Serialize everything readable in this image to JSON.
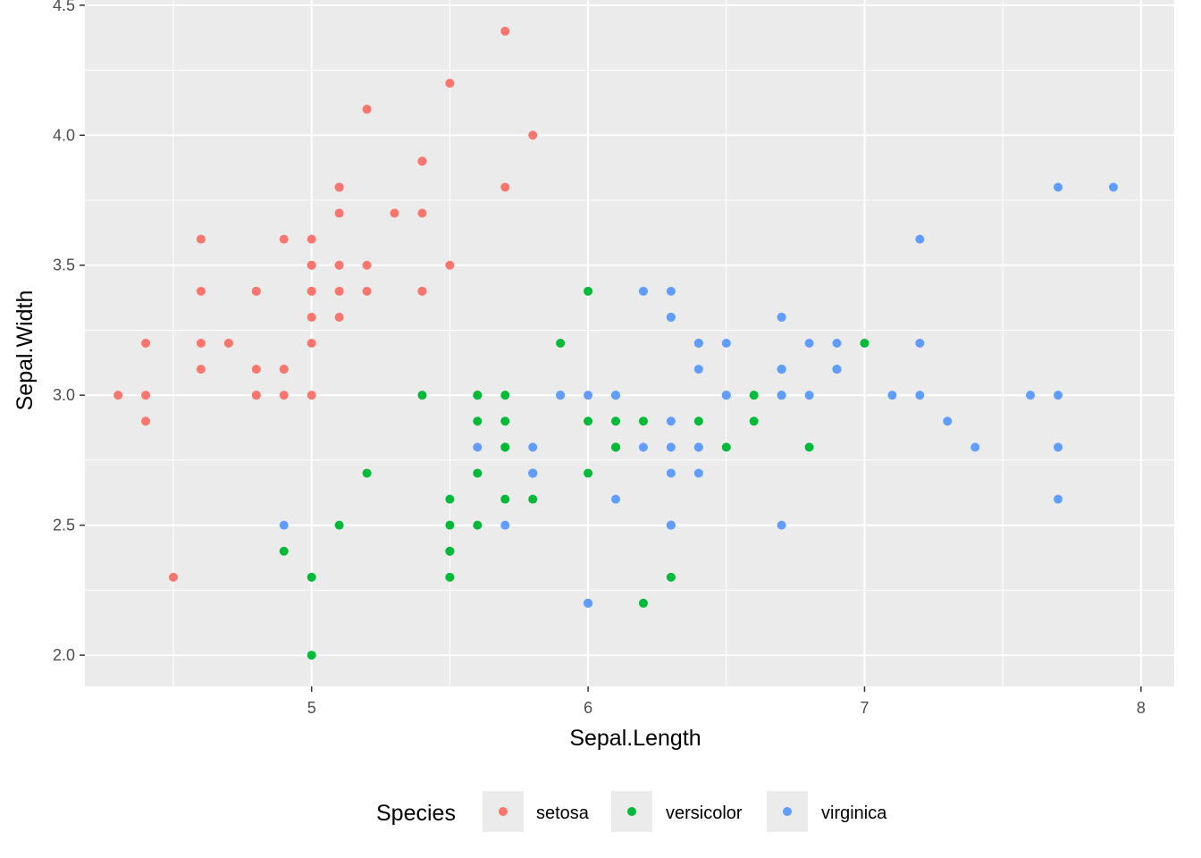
{
  "chart_data": {
    "type": "scatter",
    "xlabel": "Sepal.Length",
    "ylabel": "Sepal.Width",
    "xlim": [
      4.18,
      8.12
    ],
    "ylim": [
      1.88,
      4.52
    ],
    "x_ticks": [
      5,
      6,
      7,
      8
    ],
    "x_tick_labels": [
      "5",
      "6",
      "7",
      "8"
    ],
    "y_ticks": [
      2.0,
      2.5,
      3.0,
      3.5,
      4.0,
      4.5
    ],
    "y_tick_labels": [
      "2.0",
      "2.5",
      "3.0",
      "3.5",
      "4.0",
      "4.5"
    ],
    "grid": true,
    "legend": {
      "title": "Species",
      "position": "bottom",
      "entries": [
        "setosa",
        "versicolor",
        "virginica"
      ]
    },
    "series": [
      {
        "name": "setosa",
        "color": "#F8766D",
        "points": [
          [
            5.1,
            3.5
          ],
          [
            4.9,
            3.0
          ],
          [
            4.7,
            3.2
          ],
          [
            4.6,
            3.1
          ],
          [
            5.0,
            3.6
          ],
          [
            5.4,
            3.9
          ],
          [
            4.6,
            3.4
          ],
          [
            5.0,
            3.4
          ],
          [
            4.4,
            2.9
          ],
          [
            4.9,
            3.1
          ],
          [
            5.4,
            3.7
          ],
          [
            4.8,
            3.4
          ],
          [
            4.8,
            3.0
          ],
          [
            4.3,
            3.0
          ],
          [
            5.8,
            4.0
          ],
          [
            5.7,
            4.4
          ],
          [
            5.4,
            3.9
          ],
          [
            5.1,
            3.5
          ],
          [
            5.7,
            3.8
          ],
          [
            5.1,
            3.8
          ],
          [
            5.4,
            3.4
          ],
          [
            5.1,
            3.7
          ],
          [
            4.6,
            3.6
          ],
          [
            5.1,
            3.3
          ],
          [
            4.8,
            3.4
          ],
          [
            5.0,
            3.0
          ],
          [
            5.0,
            3.4
          ],
          [
            5.2,
            3.5
          ],
          [
            5.2,
            3.4
          ],
          [
            4.7,
            3.2
          ],
          [
            4.8,
            3.1
          ],
          [
            5.4,
            3.4
          ],
          [
            5.2,
            4.1
          ],
          [
            5.5,
            4.2
          ],
          [
            4.9,
            3.1
          ],
          [
            5.0,
            3.2
          ],
          [
            5.5,
            3.5
          ],
          [
            4.9,
            3.6
          ],
          [
            4.4,
            3.0
          ],
          [
            5.1,
            3.4
          ],
          [
            5.0,
            3.5
          ],
          [
            4.5,
            2.3
          ],
          [
            4.4,
            3.2
          ],
          [
            5.0,
            3.5
          ],
          [
            5.1,
            3.8
          ],
          [
            4.8,
            3.0
          ],
          [
            5.1,
            3.8
          ],
          [
            4.6,
            3.2
          ],
          [
            5.3,
            3.7
          ],
          [
            5.0,
            3.3
          ]
        ]
      },
      {
        "name": "versicolor",
        "color": "#00BA38",
        "points": [
          [
            7.0,
            3.2
          ],
          [
            6.4,
            3.2
          ],
          [
            6.9,
            3.1
          ],
          [
            5.5,
            2.3
          ],
          [
            6.5,
            2.8
          ],
          [
            5.7,
            2.8
          ],
          [
            6.3,
            3.3
          ],
          [
            4.9,
            2.4
          ],
          [
            6.6,
            2.9
          ],
          [
            5.2,
            2.7
          ],
          [
            5.0,
            2.0
          ],
          [
            5.9,
            3.0
          ],
          [
            6.0,
            2.2
          ],
          [
            6.1,
            2.9
          ],
          [
            5.6,
            2.9
          ],
          [
            6.7,
            3.1
          ],
          [
            5.6,
            3.0
          ],
          [
            5.8,
            2.7
          ],
          [
            6.2,
            2.2
          ],
          [
            5.6,
            2.5
          ],
          [
            5.9,
            3.2
          ],
          [
            6.1,
            2.8
          ],
          [
            6.3,
            2.5
          ],
          [
            6.1,
            2.8
          ],
          [
            6.4,
            2.9
          ],
          [
            6.6,
            3.0
          ],
          [
            6.8,
            2.8
          ],
          [
            6.7,
            3.0
          ],
          [
            6.0,
            2.9
          ],
          [
            5.7,
            2.6
          ],
          [
            5.5,
            2.4
          ],
          [
            5.5,
            2.4
          ],
          [
            5.8,
            2.7
          ],
          [
            6.0,
            2.7
          ],
          [
            5.4,
            3.0
          ],
          [
            6.0,
            3.4
          ],
          [
            6.7,
            3.1
          ],
          [
            6.3,
            2.3
          ],
          [
            5.6,
            3.0
          ],
          [
            5.5,
            2.5
          ],
          [
            5.5,
            2.6
          ],
          [
            6.1,
            3.0
          ],
          [
            5.8,
            2.6
          ],
          [
            5.0,
            2.3
          ],
          [
            5.6,
            2.7
          ],
          [
            5.7,
            3.0
          ],
          [
            5.7,
            2.9
          ],
          [
            6.2,
            2.9
          ],
          [
            5.1,
            2.5
          ],
          [
            5.7,
            2.8
          ]
        ]
      },
      {
        "name": "virginica",
        "color": "#619CFF",
        "points": [
          [
            6.3,
            3.3
          ],
          [
            5.8,
            2.7
          ],
          [
            7.1,
            3.0
          ],
          [
            6.3,
            2.9
          ],
          [
            6.5,
            3.0
          ],
          [
            7.6,
            3.0
          ],
          [
            4.9,
            2.5
          ],
          [
            7.3,
            2.9
          ],
          [
            6.7,
            2.5
          ],
          [
            7.2,
            3.6
          ],
          [
            6.5,
            3.2
          ],
          [
            6.4,
            2.7
          ],
          [
            6.8,
            3.0
          ],
          [
            5.7,
            2.5
          ],
          [
            5.8,
            2.8
          ],
          [
            6.4,
            3.2
          ],
          [
            6.5,
            3.0
          ],
          [
            7.7,
            3.8
          ],
          [
            7.7,
            2.6
          ],
          [
            6.0,
            2.2
          ],
          [
            6.9,
            3.2
          ],
          [
            5.6,
            2.8
          ],
          [
            7.7,
            2.8
          ],
          [
            6.3,
            2.7
          ],
          [
            6.7,
            3.3
          ],
          [
            7.2,
            3.2
          ],
          [
            6.2,
            2.8
          ],
          [
            6.1,
            3.0
          ],
          [
            6.4,
            2.8
          ],
          [
            7.2,
            3.0
          ],
          [
            7.4,
            2.8
          ],
          [
            7.9,
            3.8
          ],
          [
            6.4,
            2.8
          ],
          [
            6.3,
            2.8
          ],
          [
            6.1,
            2.6
          ],
          [
            7.7,
            3.0
          ],
          [
            6.3,
            3.4
          ],
          [
            6.4,
            3.1
          ],
          [
            6.0,
            3.0
          ],
          [
            6.9,
            3.1
          ],
          [
            6.7,
            3.1
          ],
          [
            6.9,
            3.1
          ],
          [
            5.8,
            2.7
          ],
          [
            6.8,
            3.2
          ],
          [
            6.7,
            3.3
          ],
          [
            6.7,
            3.0
          ],
          [
            6.3,
            2.5
          ],
          [
            6.5,
            3.0
          ],
          [
            6.2,
            3.4
          ],
          [
            5.9,
            3.0
          ]
        ]
      }
    ]
  }
}
